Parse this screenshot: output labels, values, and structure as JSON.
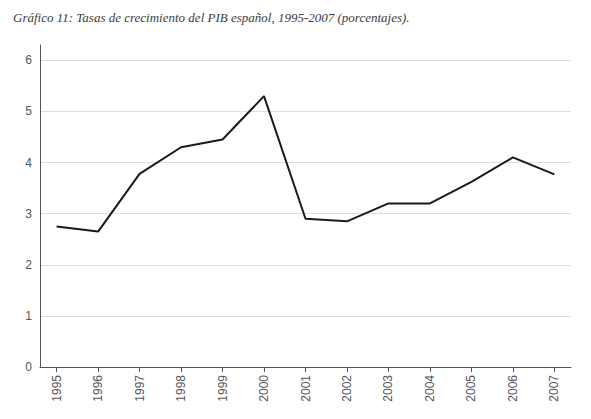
{
  "chart_data": {
    "type": "line",
    "title": "Gráfico 11: Tasas de crecimiento del PIB español, 1995-2007 (porcentajes).",
    "x": [
      1995,
      1996,
      1997,
      1998,
      1999,
      2000,
      2001,
      2002,
      2003,
      2004,
      2005,
      2006,
      2007
    ],
    "values": [
      2.75,
      2.65,
      3.78,
      4.3,
      4.45,
      5.3,
      2.9,
      2.85,
      3.2,
      3.2,
      3.62,
      4.1,
      3.77
    ],
    "xlim": [
      1994.6,
      2007.4
    ],
    "xticks": [
      1995,
      1996,
      1997,
      1998,
      1999,
      2000,
      2001,
      2002,
      2003,
      2004,
      2005,
      2006,
      2007
    ],
    "ylim": [
      0,
      6.3
    ],
    "yticks": [
      0,
      1,
      2,
      3,
      4,
      5,
      6
    ],
    "color": "#1a1a1a",
    "grid": true
  }
}
